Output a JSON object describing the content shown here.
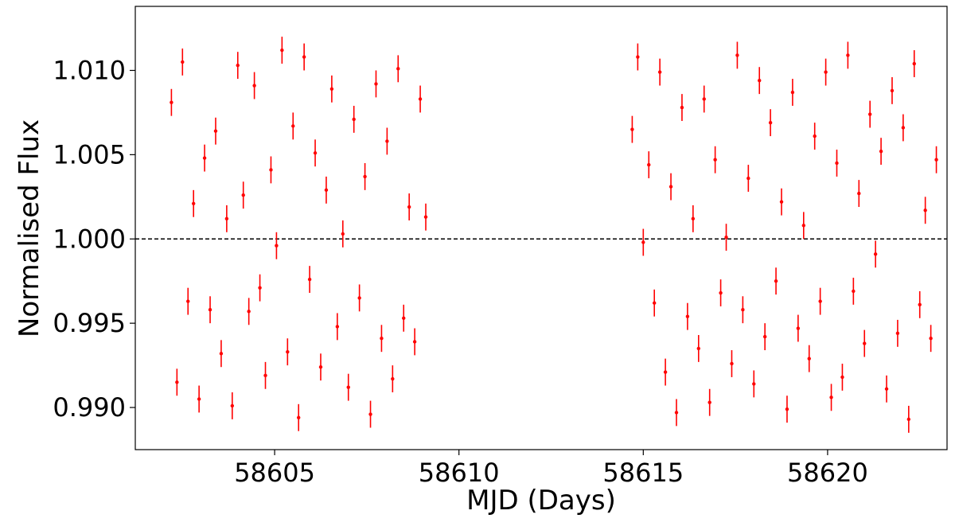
{
  "chart_data": {
    "type": "errorbar_scatter",
    "xlabel": "MJD (Days)",
    "ylabel": "Normalised Flux",
    "xlim": [
      58601.22,
      58623.24
    ],
    "xticks": [
      58605,
      58610,
      58615,
      58620
    ],
    "ylim": [
      0.9875,
      1.0138
    ],
    "yticks": [
      {
        "value": 0.99,
        "label": "0.990"
      },
      {
        "value": 0.995,
        "label": "0.995"
      },
      {
        "value": 1.0,
        "label": "1.000"
      },
      {
        "value": 1.005,
        "label": "1.005"
      },
      {
        "value": 1.01,
        "label": "1.010"
      }
    ],
    "hline": 1.0,
    "hline_color": "#000000",
    "series": [
      {
        "color": "#ff0000",
        "yerr": 0.0008,
        "x": [
          58602.2,
          58602.35,
          58602.5,
          58602.65,
          58602.8,
          58602.95,
          58603.1,
          58603.25,
          58603.4,
          58603.55,
          58603.7,
          58603.85,
          58604,
          58604.15,
          58604.3,
          58604.45,
          58604.6,
          58604.75,
          58604.9,
          58605.05,
          58605.2,
          58605.35,
          58605.5,
          58605.65,
          58605.8,
          58605.95,
          58606.1,
          58606.25,
          58606.4,
          58606.55,
          58606.7,
          58606.85,
          58607,
          58607.15,
          58607.3,
          58607.45,
          58607.6,
          58607.75,
          58607.9,
          58608.05,
          58608.2,
          58608.35,
          58608.5,
          58608.65,
          58608.8,
          58608.95,
          58609.1,
          58614.7,
          58614.85,
          58615,
          58615.15,
          58615.3,
          58615.45,
          58615.6,
          58615.75,
          58615.9,
          58616.05,
          58616.2,
          58616.35,
          58616.5,
          58616.65,
          58616.8,
          58616.95,
          58617.1,
          58617.25,
          58617.4,
          58617.55,
          58617.7,
          58617.85,
          58618,
          58618.15,
          58618.3,
          58618.45,
          58618.6,
          58618.75,
          58618.9,
          58619.05,
          58619.2,
          58619.35,
          58619.5,
          58619.65,
          58619.8,
          58619.95,
          58620.1,
          58620.25,
          58620.4,
          58620.55,
          58620.7,
          58620.85,
          58621,
          58621.15,
          58621.3,
          58621.45,
          58621.6,
          58621.75,
          58621.9,
          58622.05,
          58622.2,
          58622.35,
          58622.5,
          58622.65,
          58622.8,
          58622.95
        ],
        "values": [
          1.0081,
          0.9915,
          1.0105,
          0.9963,
          1.0021,
          0.9905,
          1.0048,
          0.9958,
          1.0064,
          0.9932,
          1.0012,
          0.9901,
          1.0103,
          1.0026,
          0.9957,
          1.0091,
          0.9971,
          0.9919,
          1.0041,
          0.9996,
          1.0112,
          0.9933,
          1.0067,
          0.9894,
          1.0108,
          0.9976,
          1.0051,
          0.9924,
          1.0029,
          1.0089,
          0.9948,
          1.0003,
          0.9912,
          1.0071,
          0.9965,
          1.0037,
          0.9896,
          1.0092,
          0.9941,
          1.0058,
          0.9917,
          1.0101,
          0.9953,
          1.0019,
          0.9939,
          1.0083,
          1.0013,
          1.0065,
          1.0108,
          0.9998,
          1.0044,
          0.9962,
          1.0099,
          0.9921,
          1.0031,
          0.9897,
          1.0078,
          0.9954,
          1.0012,
          0.9935,
          1.0083,
          0.9903,
          1.0047,
          0.9968,
          1.0001,
          0.9926,
          1.0109,
          0.9958,
          1.0036,
          0.9914,
          1.0094,
          0.9942,
          1.0069,
          0.9975,
          1.0022,
          0.9899,
          1.0087,
          0.9947,
          1.0008,
          0.9929,
          1.0061,
          0.9963,
          1.0099,
          0.9906,
          1.0045,
          0.9918,
          1.0109,
          0.9969,
          1.0027,
          0.9938,
          1.0074,
          0.9991,
          1.0052,
          0.9911,
          1.0088,
          0.9944,
          1.0066,
          0.9893,
          1.0104,
          0.9961,
          1.0017,
          0.9941,
          1.0047
        ]
      }
    ]
  }
}
